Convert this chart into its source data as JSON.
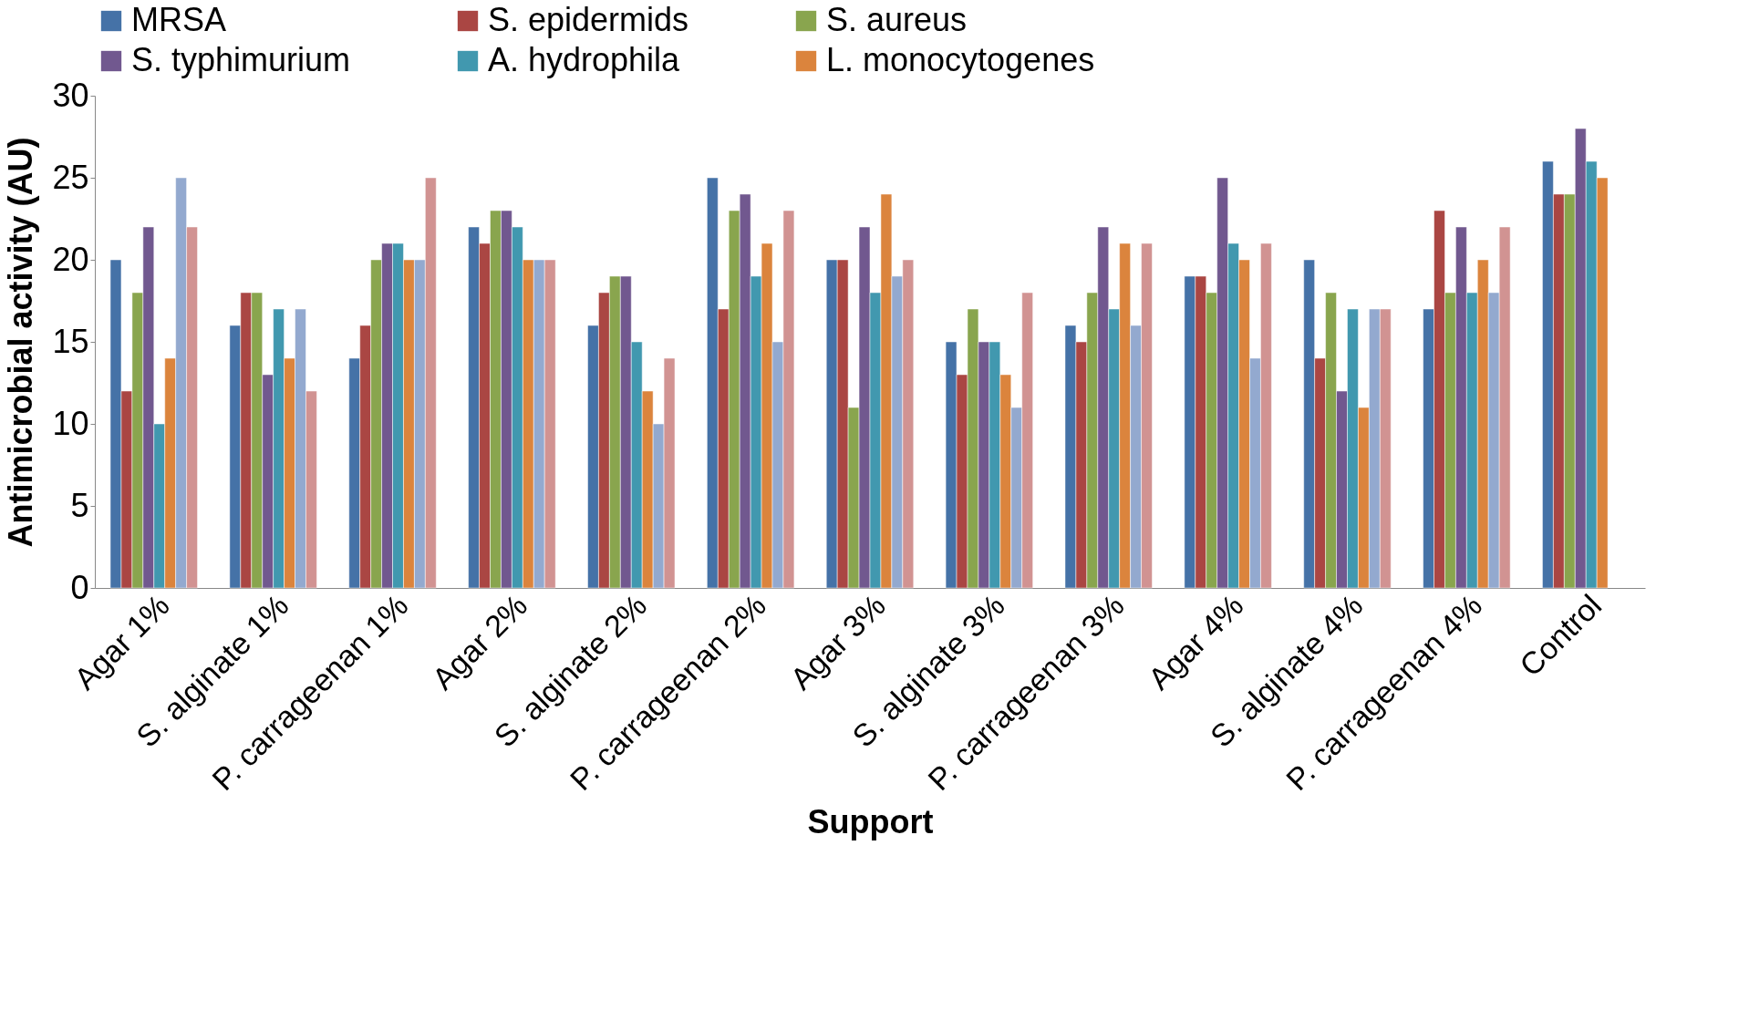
{
  "chart_data": {
    "type": "bar",
    "xlabel": "Support",
    "ylabel": "Antimicrobial activity (AU)",
    "categories": [
      "Agar 1%",
      "S. alginate 1%",
      "P. carrageenan 1%",
      "Agar 2%",
      "S. alginate 2%",
      "P. carrageenan 2%",
      "Agar 3%",
      "S. alginate 3%",
      "P. carrageenan 3%",
      "Agar 4%",
      "S. alginate 4%",
      "P. carrageenan 4%",
      "Control"
    ],
    "series": [
      {
        "name": "MRSA",
        "color": "#4572a7",
        "values": [
          20,
          16,
          14,
          22,
          16,
          25,
          20,
          15,
          16,
          19,
          20,
          17,
          26
        ]
      },
      {
        "name": "S. epidermids",
        "color": "#aa4643",
        "values": [
          12,
          18,
          16,
          21,
          18,
          17,
          20,
          13,
          15,
          19,
          14,
          23,
          24
        ]
      },
      {
        "name": "S. aureus",
        "color": "#89a54e",
        "values": [
          18,
          18,
          20,
          23,
          19,
          23,
          11,
          17,
          18,
          18,
          18,
          18,
          24
        ]
      },
      {
        "name": "S. typhimurium",
        "color": "#71588f",
        "values": [
          22,
          13,
          21,
          23,
          19,
          24,
          22,
          15,
          22,
          25,
          12,
          22,
          28
        ]
      },
      {
        "name": "A. hydrophila",
        "color": "#4198af",
        "values": [
          10,
          17,
          21,
          22,
          15,
          19,
          18,
          15,
          17,
          21,
          17,
          18,
          26
        ]
      },
      {
        "name": "L. monocytogenes",
        "color": "#db843d",
        "values": [
          14,
          14,
          20,
          20,
          12,
          21,
          24,
          13,
          21,
          20,
          11,
          20,
          25
        ]
      },
      {
        "color": "#93a9cf",
        "values": [
          25,
          17,
          20,
          20,
          10,
          15,
          19,
          11,
          16,
          14,
          17,
          18,
          null
        ]
      },
      {
        "color": "#d19392",
        "values": [
          22,
          12,
          25,
          20,
          14,
          23,
          20,
          18,
          21,
          21,
          17,
          22,
          null
        ]
      }
    ],
    "ylim": [
      0,
      30
    ],
    "yticks": [
      0,
      5,
      10,
      15,
      20,
      25,
      30
    ],
    "grid": false,
    "legend": "top"
  }
}
